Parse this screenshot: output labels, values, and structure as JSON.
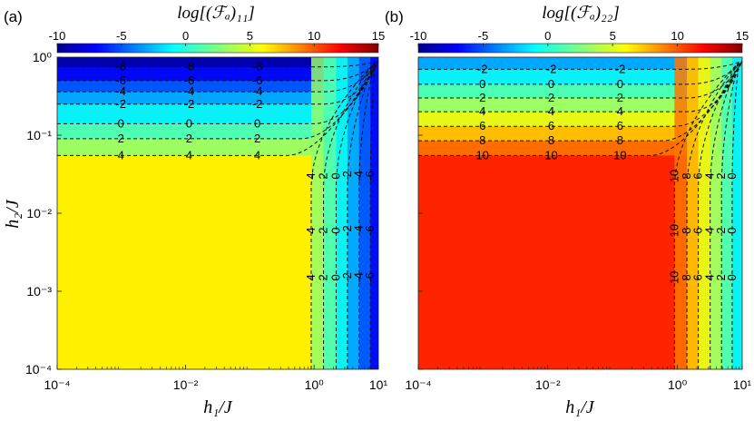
{
  "figure": {
    "panel_labels": [
      "(a)",
      "(b)"
    ],
    "ylabel": "h₂/J",
    "xlabel": "h₁/J",
    "colorbar_ticks": [
      "-10",
      "-5",
      "0",
      "5",
      "10",
      "15"
    ],
    "x_tick_labels": [
      "10⁻⁴",
      "10⁻²",
      "10⁰",
      "10¹"
    ],
    "y_tick_labels": [
      "10⁰",
      "10⁻¹",
      "10⁻²",
      "10⁻³",
      "10⁻⁴"
    ]
  },
  "chart_data": [
    {
      "type": "heatmap",
      "panel": "(a)",
      "title": "log[(F_Q)_11]",
      "title_display": "log[(ℱₐ)₁₁]",
      "xlabel": "h₁/J",
      "ylabel": "h₂/J",
      "x_scale": "log",
      "y_scale": "log",
      "xlim": [
        0.0001,
        10
      ],
      "ylim": [
        0.0001,
        1
      ],
      "colorbar": {
        "range": [
          -10,
          15
        ],
        "ticks": [
          -10,
          -5,
          0,
          5,
          10,
          15
        ],
        "colormap": "jet"
      },
      "background_value": 6,
      "contour_levels": [
        -8,
        -6,
        -4,
        -2,
        0,
        2,
        4,
        6
      ],
      "top_contours": [
        {
          "level": -8,
          "h2": 0.75
        },
        {
          "level": -6,
          "h2": 0.5
        },
        {
          "level": -4,
          "h2": 0.36
        },
        {
          "level": -2,
          "h2": 0.25
        },
        {
          "level": 0,
          "h2": 0.14
        },
        {
          "level": 2,
          "h2": 0.09
        },
        {
          "level": 4,
          "h2": 0.055
        }
      ],
      "right_contours": [
        {
          "level": 4,
          "h1": 0.9
        },
        {
          "level": 2,
          "h1": 1.4
        },
        {
          "level": 0,
          "h1": 2.2
        },
        {
          "level": -2,
          "h1": 3.3
        },
        {
          "level": -4,
          "h1": 5.0
        },
        {
          "level": -6,
          "h1": 7.5
        }
      ]
    },
    {
      "type": "heatmap",
      "panel": "(b)",
      "title": "log[(F_Q)_22]",
      "title_display": "log[(ℱₐ)₂₂]",
      "xlabel": "h₁/J",
      "ylabel": "h₂/J",
      "x_scale": "log",
      "y_scale": "log",
      "xlim": [
        0.0001,
        10
      ],
      "ylim": [
        0.0001,
        1
      ],
      "colorbar": {
        "range": [
          -10,
          15
        ],
        "ticks": [
          -10,
          -5,
          0,
          5,
          10,
          15
        ],
        "colormap": "jet"
      },
      "background_value": 11,
      "contour_levels": [
        -2,
        0,
        2,
        4,
        6,
        8,
        10
      ],
      "top_contours": [
        {
          "level": -2,
          "h2": 0.7
        },
        {
          "level": 0,
          "h2": 0.45
        },
        {
          "level": 2,
          "h2": 0.3
        },
        {
          "level": 4,
          "h2": 0.2
        },
        {
          "level": 6,
          "h2": 0.13
        },
        {
          "level": 8,
          "h2": 0.085
        },
        {
          "level": 10,
          "h2": 0.055
        }
      ],
      "right_contours": [
        {
          "level": 10,
          "h1": 0.9
        },
        {
          "level": 8,
          "h1": 1.4
        },
        {
          "level": 6,
          "h1": 2.1
        },
        {
          "level": 4,
          "h1": 3.2
        },
        {
          "level": 2,
          "h1": 4.8
        },
        {
          "level": 0,
          "h1": 7.0
        }
      ]
    }
  ]
}
